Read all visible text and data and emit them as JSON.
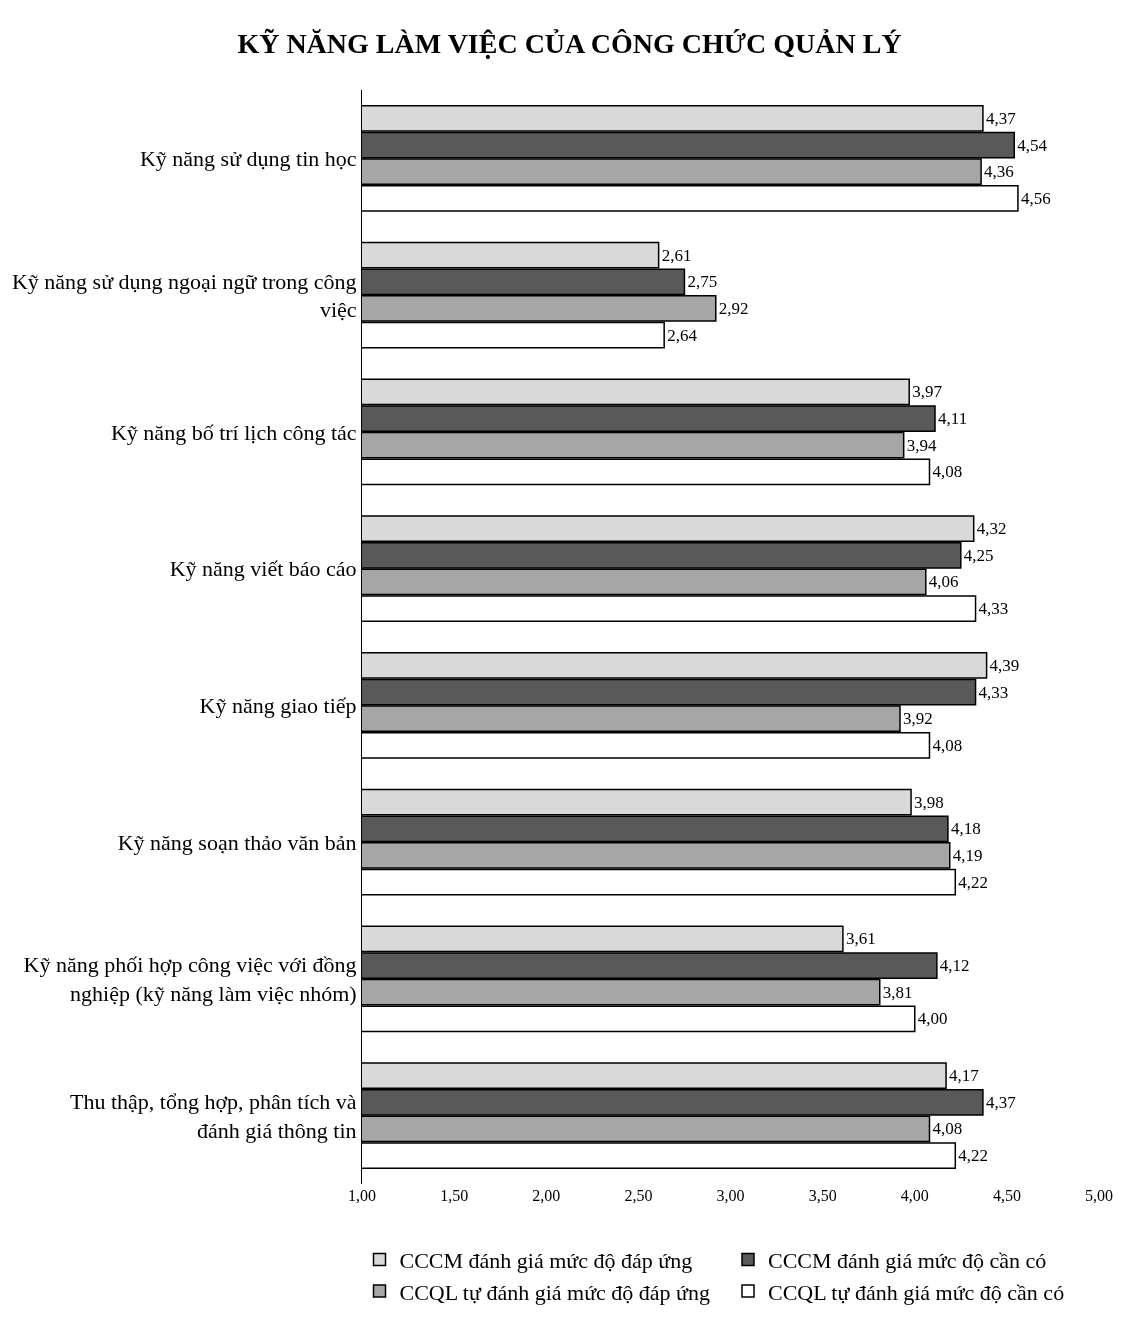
{
  "chart_data": {
    "type": "bar",
    "orientation": "horizontal",
    "title": "KỸ NĂNG LÀM VIỆC CỦA CÔNG CHỨC QUẢN LÝ",
    "categories": [
      "Kỹ năng sử dụng tin học",
      "Kỹ năng sử dụng ngoại ngữ trong công việc",
      "Kỹ năng bố trí lịch công tác",
      "Kỹ năng viết báo cáo",
      "Kỹ năng giao tiếp",
      "Kỹ năng soạn thảo văn bản",
      "Kỹ năng phối hợp công việc với đồng nghiệp (kỹ năng làm việc nhóm)",
      "Thu thập, tổng hợp, phân tích và đánh giá thông tin"
    ],
    "series": [
      {
        "name": "CCCM đánh giá mức độ đáp ứng",
        "color": "#d9d9d9",
        "values": [
          4.37,
          2.61,
          3.97,
          4.32,
          4.39,
          3.98,
          3.61,
          4.17
        ],
        "value_labels": [
          "4,37",
          "2,61",
          "3,97",
          "4,32",
          "4,39",
          "3,98",
          "3,61",
          "4,17"
        ]
      },
      {
        "name": "CCCM đánh giá mức độ cần có",
        "color": "#595959",
        "values": [
          4.54,
          2.75,
          4.11,
          4.25,
          4.33,
          4.18,
          4.12,
          4.37
        ],
        "value_labels": [
          "4,54",
          "2,75",
          "4,11",
          "4,25",
          "4,33",
          "4,18",
          "4,12",
          "4,37"
        ]
      },
      {
        "name": "CCQL tự đánh giá mức độ đáp ứng",
        "color": "#a6a6a6",
        "values": [
          4.36,
          2.92,
          3.94,
          4.06,
          3.92,
          4.19,
          3.81,
          4.08
        ],
        "value_labels": [
          "4,36",
          "2,92",
          "3,94",
          "4,06",
          "3,92",
          "4,19",
          "3,81",
          "4,08"
        ]
      },
      {
        "name": "CCQL tự đánh giá mức độ cần có",
        "color": "#ffffff",
        "values": [
          4.56,
          2.64,
          4.08,
          4.33,
          4.08,
          4.22,
          4.0,
          4.22
        ],
        "value_labels": [
          "4,56",
          "2,64",
          "4,08",
          "4,33",
          "4,08",
          "4,22",
          "4,00",
          "4,22"
        ]
      }
    ],
    "xlim": [
      1,
      5
    ],
    "xticks": [
      {
        "value": 1,
        "label": "1,00"
      },
      {
        "value": 1.5,
        "label": "1,50"
      },
      {
        "value": 2,
        "label": "2,00"
      },
      {
        "value": 2.5,
        "label": "2,50"
      },
      {
        "value": 3,
        "label": "3,00"
      },
      {
        "value": 3.5,
        "label": "3,50"
      },
      {
        "value": 4,
        "label": "4,00"
      },
      {
        "value": 4.5,
        "label": "4,50"
      },
      {
        "value": 5,
        "label": "5,00"
      }
    ],
    "grid": false,
    "legend": "bottom"
  }
}
